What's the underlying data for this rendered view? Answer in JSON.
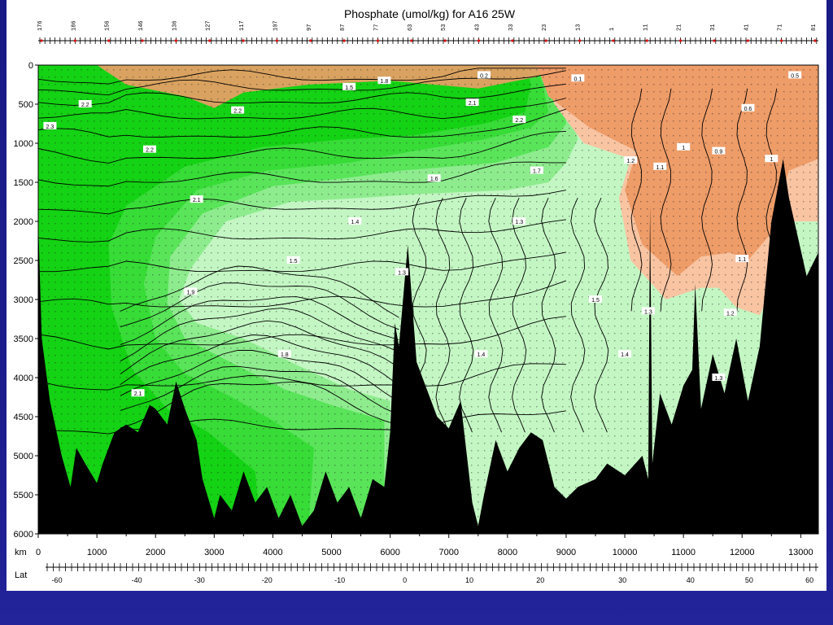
{
  "page": {
    "background_color": "#1d1d8f",
    "panel_color": "#ffffff"
  },
  "chart_data": {
    "type": "heatmap",
    "title": "Phosphate (umol/kg) for A16 25W",
    "variable": "Phosphate",
    "units": "umol/kg",
    "section": "A16 25W",
    "xlabel": "km",
    "x_secondary_label": "Lat",
    "y_direction": "depth increasing downward",
    "ylim": [
      6000,
      0
    ],
    "xlim": [
      0,
      13300
    ],
    "y_ticks": [
      0,
      500,
      1000,
      1500,
      2000,
      2500,
      3000,
      3500,
      4000,
      4500,
      5000,
      5500,
      6000
    ],
    "x_ticks_km": [
      0,
      1000,
      2000,
      3000,
      4000,
      5000,
      6000,
      7000,
      8000,
      9000,
      10000,
      11000,
      12000,
      13000
    ],
    "lat_ticks": [
      {
        "label": "-60",
        "km": 320
      },
      {
        "label": "-40",
        "km": 1680
      },
      {
        "label": "-30",
        "km": 2750
      },
      {
        "label": "-20",
        "km": 3900
      },
      {
        "label": "-10",
        "km": 5140
      },
      {
        "label": "0",
        "km": 6250
      },
      {
        "label": "10",
        "km": 7350
      },
      {
        "label": "20",
        "km": 8560
      },
      {
        "label": "30",
        "km": 9960
      },
      {
        "label": "40",
        "km": 11120
      },
      {
        "label": "50",
        "km": 12120
      },
      {
        "label": "60",
        "km": 13150
      }
    ],
    "stations_top": [
      "176",
      "186",
      "156",
      "146",
      "136",
      "127",
      "117",
      "107",
      "97",
      "87",
      "77",
      "63",
      "53",
      "43",
      "33",
      "23",
      "13",
      "1",
      "11",
      "21",
      "31",
      "41",
      "71",
      "81"
    ],
    "color_classes": [
      {
        "range": "> 2.2",
        "color": "#14d214"
      },
      {
        "range": "2.0-2.2",
        "color": "#37dc37"
      },
      {
        "range": "1.8-2.0",
        "color": "#59e459"
      },
      {
        "range": "1.5-1.8",
        "color": "#8eec8e"
      },
      {
        "range": "1.3-1.5",
        "color": "#c3f6c3"
      },
      {
        "range": "0.8-1.3",
        "color": "#f8c4a2"
      },
      {
        "range": "< 0.8",
        "color": "#ee9c68"
      },
      {
        "range": "bottom",
        "color": "#000000"
      }
    ],
    "contour_labels": [
      {
        "text": "2.3",
        "x": 200,
        "y": 780
      },
      {
        "text": "2.2",
        "x": 800,
        "y": 500
      },
      {
        "text": "2.2",
        "x": 1900,
        "y": 1080
      },
      {
        "text": "2.1",
        "x": 2700,
        "y": 1720
      },
      {
        "text": "2.2",
        "x": 3400,
        "y": 580
      },
      {
        "text": "2.1",
        "x": 1700,
        "y": 4200
      },
      {
        "text": "1.9",
        "x": 2600,
        "y": 2900
      },
      {
        "text": "1.8",
        "x": 4200,
        "y": 3700
      },
      {
        "text": "1.5",
        "x": 4350,
        "y": 2500
      },
      {
        "text": "1.4",
        "x": 5400,
        "y": 2000
      },
      {
        "text": "1.3",
        "x": 6200,
        "y": 2650
      },
      {
        "text": "1.6",
        "x": 6750,
        "y": 1450
      },
      {
        "text": "1.7",
        "x": 8500,
        "y": 1350
      },
      {
        "text": "1.4",
        "x": 7550,
        "y": 3700
      },
      {
        "text": "1.3",
        "x": 8200,
        "y": 2000
      },
      {
        "text": "1.5",
        "x": 9500,
        "y": 3000
      },
      {
        "text": "1.4",
        "x": 10000,
        "y": 3700
      },
      {
        "text": "1.3",
        "x": 10400,
        "y": 3150
      },
      {
        "text": "1.2",
        "x": 10100,
        "y": 1220
      },
      {
        "text": "1.1",
        "x": 10600,
        "y": 1300
      },
      {
        "text": "1",
        "x": 11000,
        "y": 1050
      },
      {
        "text": "0.9",
        "x": 11600,
        "y": 1100
      },
      {
        "text": "1",
        "x": 12500,
        "y": 1200
      },
      {
        "text": "0.6",
        "x": 12100,
        "y": 550
      },
      {
        "text": "0.5",
        "x": 12900,
        "y": 130
      },
      {
        "text": "1.1",
        "x": 12000,
        "y": 2480
      },
      {
        "text": "1.2",
        "x": 11800,
        "y": 3170
      },
      {
        "text": "1.3",
        "x": 11600,
        "y": 4000
      },
      {
        "text": "0.1",
        "x": 9200,
        "y": 170
      },
      {
        "text": "0.2",
        "x": 7600,
        "y": 130
      },
      {
        "text": "1.8",
        "x": 5900,
        "y": 200
      },
      {
        "text": "1.5",
        "x": 5300,
        "y": 280
      },
      {
        "text": "2.1",
        "x": 7400,
        "y": 480
      },
      {
        "text": "2.2",
        "x": 8200,
        "y": 700
      }
    ]
  }
}
